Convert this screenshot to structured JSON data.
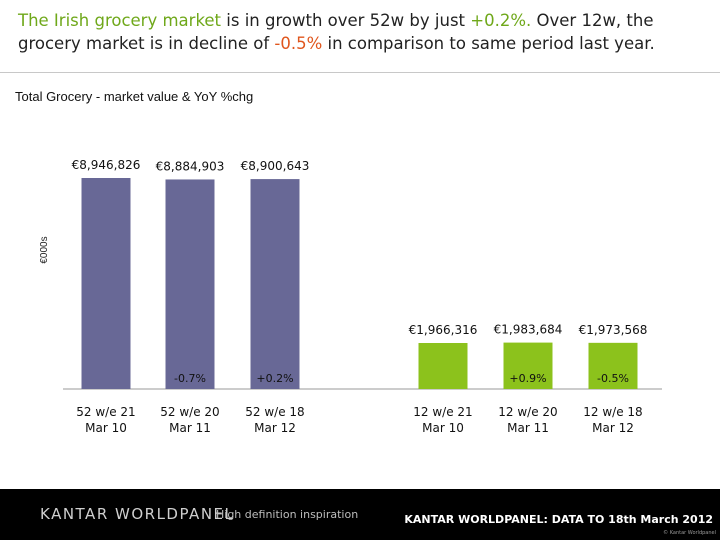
{
  "headline": {
    "part1": "The Irish grocery market",
    "part2": "  is in growth over 52w by just ",
    "part3": "+0.2%.",
    "part4": " Over 12w, the grocery market is in decline of ",
    "part5": "-0.5%",
    "part6": " in comparison to  same period last year."
  },
  "colors": {
    "accent_green": "#6fa81a",
    "accent_red": "#e0561d",
    "bar_52w": "#686896",
    "bar_12w": "#8cc21c"
  },
  "chart_data": {
    "type": "bar",
    "title": "Total Grocery - market value & YoY %chg",
    "ylabel": "€000s",
    "grid": false,
    "groups": [
      {
        "period": "52w",
        "bar_color": "#686896",
        "categories": [
          "52 w/e 21 Mar 10",
          "52 w/e 20 Mar 11",
          "52 w/e 18 Mar 12"
        ],
        "x_labels": [
          [
            "52 w/e 21",
            "Mar 10"
          ],
          [
            "52 w/e 20",
            "Mar 11"
          ],
          [
            "52 w/e 18",
            "Mar 12"
          ]
        ],
        "values": [
          8946826,
          8884903,
          8900643
        ],
        "value_labels": [
          "€8,946,826",
          "€8,884,903",
          "€8,900,643"
        ],
        "yoy_change": [
          "",
          "-0.7%",
          "+0.2%"
        ]
      },
      {
        "period": "12w",
        "bar_color": "#8cc21c",
        "categories": [
          "12 w/e 21 Mar 10",
          "12 w/e 20 Mar 11",
          "12 w/e 18 Mar 12"
        ],
        "x_labels": [
          [
            "12 w/e 21",
            "Mar 10"
          ],
          [
            "12 w/e 20",
            "Mar 11"
          ],
          [
            "12 w/e 18",
            "Mar 12"
          ]
        ],
        "values": [
          1966316,
          1983684,
          1973568
        ],
        "value_labels": [
          "€1,966,316",
          "€1,983,684",
          "€1,973,568"
        ],
        "yoy_change": [
          "",
          "+0.9%",
          "-0.5%"
        ]
      }
    ]
  },
  "footer": {
    "brand": "KANTAR WORLDPANEL",
    "tagline": "High definition inspiration",
    "source": "KANTAR WORLDPANEL: DATA TO 18th March 2012",
    "copyright": "© Kantar Worldpanel"
  }
}
